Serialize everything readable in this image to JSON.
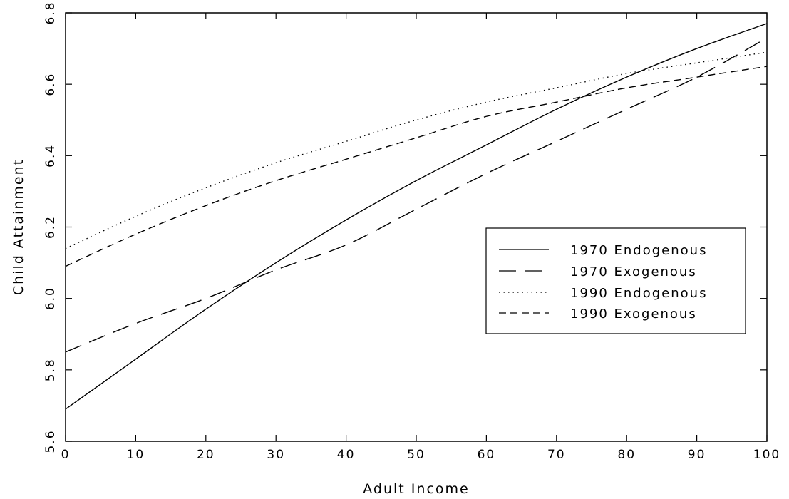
{
  "chart_data": {
    "type": "line",
    "title": "",
    "xlabel": "Adult Income",
    "ylabel": "Child Attainment",
    "xlim": [
      0,
      100
    ],
    "ylim": [
      5.6,
      6.8
    ],
    "xticks": [
      0,
      10,
      20,
      30,
      40,
      50,
      60,
      70,
      80,
      90,
      100
    ],
    "yticks": [
      5.6,
      5.8,
      6.0,
      6.2,
      6.4,
      6.6,
      6.8
    ],
    "xtick_labels": [
      "0",
      "10",
      "20",
      "30",
      "40",
      "50",
      "60",
      "70",
      "80",
      "90",
      "100"
    ],
    "ytick_labels": [
      "5.6",
      "5.8",
      "6.0",
      "6.2",
      "6.4",
      "6.6",
      "6.8"
    ],
    "grid": false,
    "legend_position": "right",
    "x": [
      0,
      10,
      20,
      30,
      40,
      50,
      60,
      70,
      80,
      90,
      100
    ],
    "series": [
      {
        "name": "1970 Endogenous",
        "style": "solid",
        "color": "#000000",
        "values": [
          5.69,
          5.83,
          5.97,
          6.1,
          6.22,
          6.33,
          6.43,
          6.53,
          6.62,
          6.7,
          6.77
        ]
      },
      {
        "name": "1970 Exogenous",
        "style": "long-dash",
        "color": "#000000",
        "values": [
          5.85,
          5.93,
          6.0,
          6.08,
          6.15,
          6.25,
          6.35,
          6.44,
          6.53,
          6.62,
          6.73
        ]
      },
      {
        "name": "1990 Endogenous",
        "style": "dotted",
        "color": "#000000",
        "values": [
          6.14,
          6.23,
          6.31,
          6.38,
          6.44,
          6.5,
          6.55,
          6.59,
          6.63,
          6.66,
          6.69
        ]
      },
      {
        "name": "1990 Exogenous",
        "style": "short-dash",
        "color": "#000000",
        "values": [
          6.09,
          6.18,
          6.26,
          6.33,
          6.39,
          6.45,
          6.51,
          6.55,
          6.59,
          6.62,
          6.65
        ]
      }
    ]
  }
}
